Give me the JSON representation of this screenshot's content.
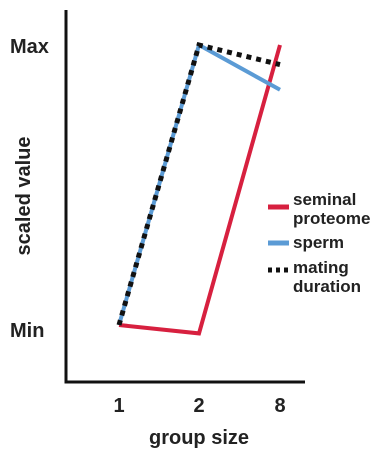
{
  "chart_data": {
    "type": "line",
    "xlabel": "group size",
    "ylabel": "scaled value",
    "categories": [
      "1",
      "2",
      "8"
    ],
    "y_tick_labels": [
      "Min",
      "Max"
    ],
    "ylim": [
      0,
      1
    ],
    "grid": false,
    "legend_position": "right",
    "series": [
      {
        "name": "seminal proteome",
        "color": "#d7203f",
        "dash": "solid",
        "values": [
          0.0,
          -0.03,
          1.0
        ]
      },
      {
        "name": "sperm",
        "color": "#5b9bd5",
        "dash": "solid",
        "values": [
          0.0,
          1.0,
          0.84
        ]
      },
      {
        "name": "mating duration",
        "color": "#111111",
        "dash": "dotted",
        "values": [
          0.0,
          1.0,
          0.93
        ]
      }
    ],
    "legend": [
      {
        "lines": [
          "seminal",
          "proteome"
        ]
      },
      {
        "lines": [
          "sperm"
        ]
      },
      {
        "lines": [
          "mating",
          "duration"
        ]
      }
    ]
  }
}
